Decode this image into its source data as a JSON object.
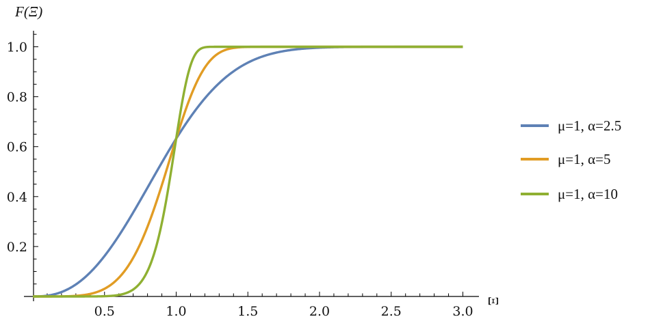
{
  "chart_data": {
    "type": "line",
    "title": "",
    "xlabel": "Ξ",
    "ylabel": "F(Ξ)",
    "xlim": [
      0,
      3.0
    ],
    "ylim": [
      0,
      1.0
    ],
    "grid": false,
    "legend_position": "right",
    "x_ticks": [
      "0.5",
      "1.0",
      "1.5",
      "2.0",
      "2.5",
      "3.0"
    ],
    "y_ticks": [
      "0.2",
      "0.4",
      "0.6",
      "0.8",
      "1.0"
    ],
    "x": [
      0,
      0.1,
      0.2,
      0.3,
      0.4,
      0.5,
      0.6,
      0.7,
      0.8,
      0.9,
      1.0,
      1.1,
      1.2,
      1.3,
      1.4,
      1.5,
      1.6,
      1.7,
      1.8,
      1.9,
      2.0,
      2.1,
      2.2,
      2.3,
      2.4,
      2.5,
      2.6,
      2.7,
      2.8,
      2.9,
      3.0
    ],
    "series": [
      {
        "name": "μ=1, α=2.5",
        "mu": 1,
        "alpha": 2.5,
        "color": "#5E81B5",
        "values": [
          0,
          0.003,
          0.018,
          0.048,
          0.096,
          0.162,
          0.243,
          0.336,
          0.436,
          0.536,
          0.632,
          0.719,
          0.793,
          0.854,
          0.902,
          0.936,
          0.961,
          0.977,
          0.987,
          0.993,
          0.997,
          0.998,
          0.999,
          1,
          1,
          1,
          1,
          1,
          1,
          1,
          1
        ]
      },
      {
        "name": "μ=1, α=5",
        "mu": 1,
        "alpha": 5,
        "color": "#E19C24",
        "values": [
          0,
          0,
          0,
          0.002,
          0.01,
          0.031,
          0.075,
          0.155,
          0.279,
          0.446,
          0.632,
          0.8,
          0.917,
          0.976,
          0.995,
          0.999,
          1,
          1,
          1,
          1,
          1,
          1,
          1,
          1,
          1,
          1,
          1,
          1,
          1,
          1,
          1
        ]
      },
      {
        "name": "μ=1, α=10",
        "mu": 1,
        "alpha": 10,
        "color": "#8FB032",
        "values": [
          0,
          0,
          0,
          0,
          0,
          0.001,
          0.006,
          0.028,
          0.102,
          0.294,
          0.632,
          0.925,
          0.998,
          1,
          1,
          1,
          1,
          1,
          1,
          1,
          1,
          1,
          1,
          1,
          1,
          1,
          1,
          1,
          1,
          1,
          1
        ]
      }
    ]
  }
}
